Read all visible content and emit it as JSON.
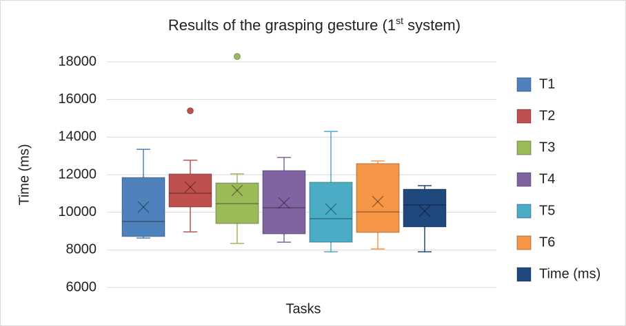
{
  "chart_data": {
    "type": "box",
    "title": [
      "Results of the grasping gesture (1",
      "st",
      " system)"
    ],
    "x_label": "Tasks",
    "y_label": "Time (ms)",
    "ylim": [
      6000,
      18000
    ],
    "yticks": [
      6000,
      8000,
      10000,
      12000,
      14000,
      16000,
      18000
    ],
    "grid": true,
    "legend": "right",
    "series": [
      {
        "name": "T1",
        "color": "#4f81bd",
        "min": 8630,
        "q1": 8710,
        "median": 9510,
        "q3": 11850,
        "max": 13350,
        "mean": 10280,
        "outliers": []
      },
      {
        "name": "T2",
        "color": "#c0504d",
        "min": 8960,
        "q1": 10280,
        "median": 11010,
        "q3": 12040,
        "max": 12770,
        "mean": 11340,
        "outliers": [
          15400
        ]
      },
      {
        "name": "T3",
        "color": "#9bbb59",
        "min": 8340,
        "q1": 9400,
        "median": 10460,
        "q3": 11560,
        "max": 12040,
        "mean": 11160,
        "outliers": [
          18290
        ]
      },
      {
        "name": "T4",
        "color": "#8064a2",
        "min": 8410,
        "q1": 8850,
        "median": 10240,
        "q3": 12220,
        "max": 12920,
        "mean": 10500,
        "outliers": []
      },
      {
        "name": "T5",
        "color": "#4bacc6",
        "min": 7900,
        "q1": 8410,
        "median": 9660,
        "q3": 11600,
        "max": 14300,
        "mean": 10170,
        "outliers": []
      },
      {
        "name": "T6",
        "color": "#f79646",
        "min": 8050,
        "q1": 8930,
        "median": 10020,
        "q3": 12590,
        "max": 12730,
        "mean": 10570,
        "outliers": []
      },
      {
        "name": "Time (ms)",
        "color": "#1f497d",
        "min": 7900,
        "q1": 9220,
        "median": 10390,
        "q3": 11230,
        "max": 11420,
        "mean": 10060,
        "outliers": []
      }
    ]
  }
}
